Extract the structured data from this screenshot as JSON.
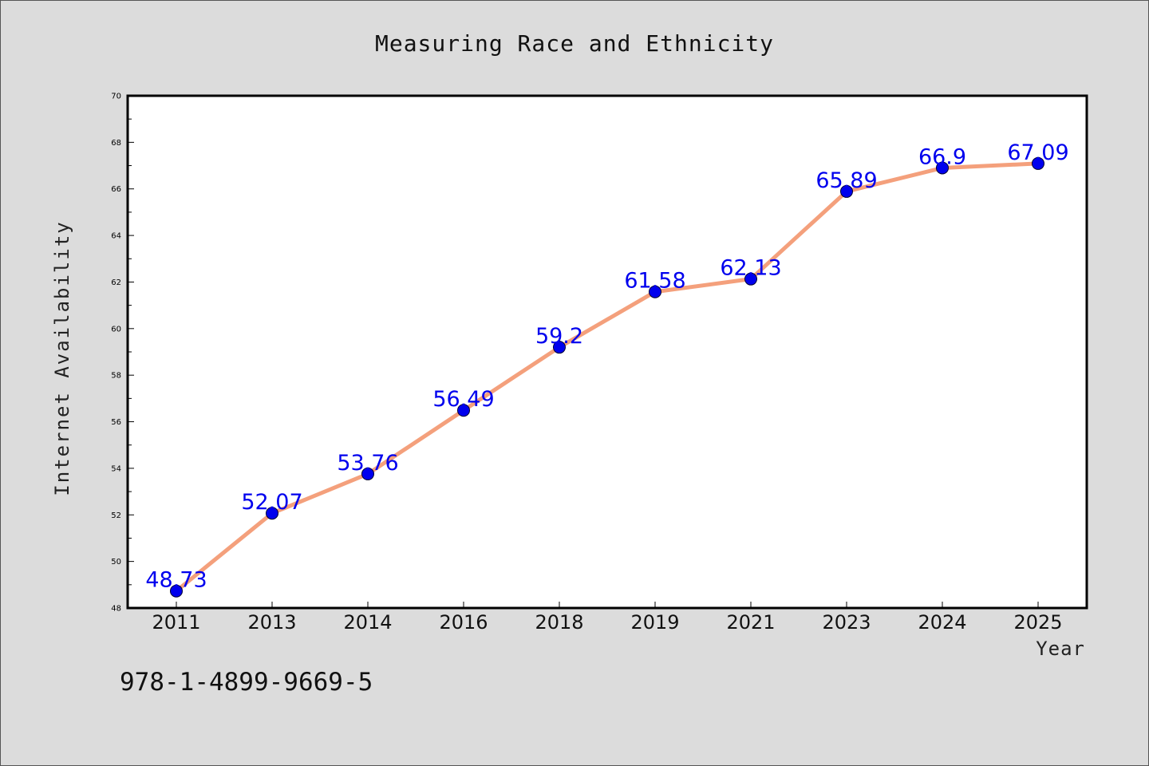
{
  "chart_data": {
    "type": "line",
    "title": "Measuring Race and Ethnicity",
    "xlabel": "Year",
    "ylabel": "Internet Availability",
    "categories": [
      "2011",
      "2013",
      "2014",
      "2016",
      "2018",
      "2019",
      "2021",
      "2023",
      "2024",
      "2025"
    ],
    "series": [
      {
        "values": [
          48.73,
          52.07,
          53.76,
          56.49,
          59.2,
          61.58,
          62.13,
          65.89,
          66.9,
          67.09
        ],
        "labels": [
          "48.73",
          "52.07",
          "53.76",
          "56.49",
          "59.2",
          "61.58",
          "62.13",
          "65.89",
          "66.9",
          "67.09"
        ]
      }
    ],
    "ylim": [
      48,
      70
    ],
    "yticks": [
      "48",
      "50",
      "52",
      "54",
      "56",
      "58",
      "60",
      "62",
      "64",
      "66",
      "68",
      "70"
    ],
    "grid": false,
    "colors": {
      "line": "#f4a07c",
      "marker": "#0000ee",
      "label": "#0000ee",
      "background": "#dcdcdc",
      "plot_background": "#ffffff"
    }
  },
  "annotation": "978-1-4899-9669-5"
}
